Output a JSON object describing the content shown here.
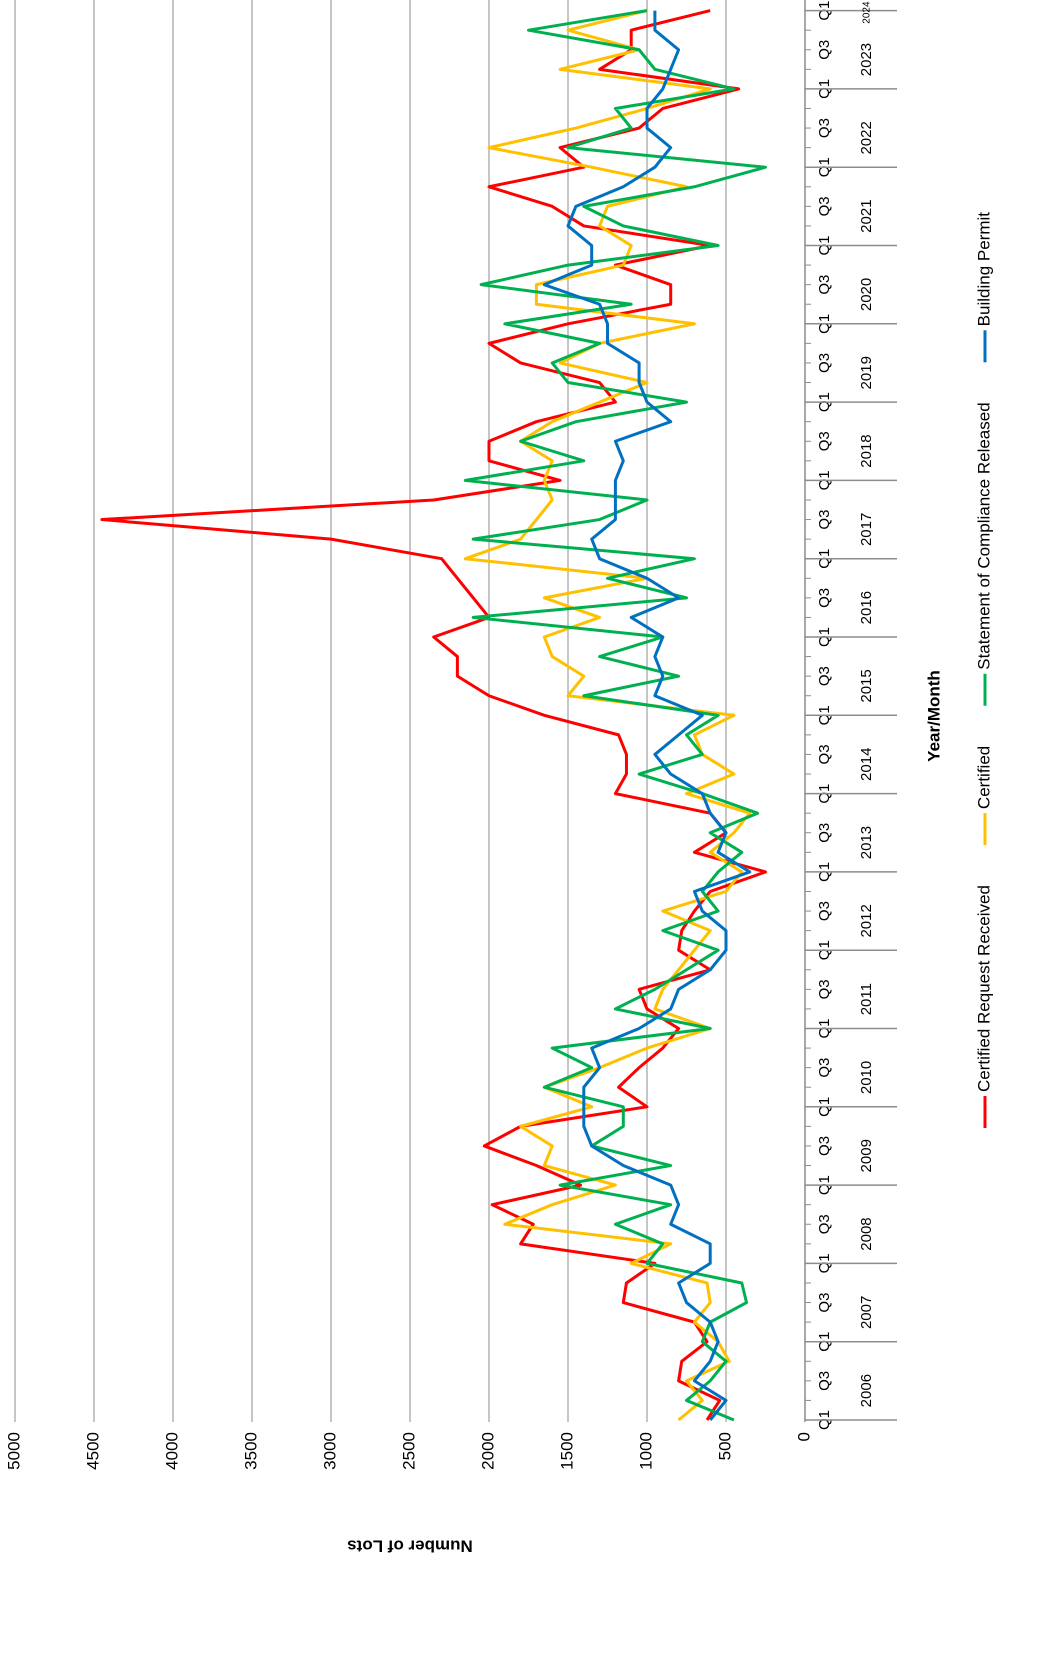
{
  "chart_data": {
    "type": "line",
    "x_axis_title": "Year/Month",
    "y_axis_title": "Number of Lots",
    "categories": [
      "Q1",
      null,
      "Q3",
      null,
      "Q1",
      null,
      "Q3",
      null,
      "Q1",
      null,
      "Q3",
      null,
      "Q1",
      null,
      "Q3",
      null,
      "Q1",
      null,
      "Q3",
      null,
      "Q1",
      null,
      "Q3",
      null,
      "Q1",
      null,
      "Q3",
      null,
      "Q1",
      null,
      "Q3",
      null,
      "Q1",
      null,
      "Q3",
      null,
      "Q1",
      null,
      "Q3",
      null,
      "Q1",
      null,
      "Q3",
      null,
      "Q1",
      null,
      "Q3",
      null,
      "Q1",
      null,
      "Q3",
      null,
      "Q1",
      null,
      "Q3",
      null,
      "Q1",
      null,
      "Q3",
      null,
      "Q1",
      null,
      "Q3",
      null,
      "Q1",
      null,
      "Q3",
      null,
      "Q1",
      null,
      "Q3",
      null,
      "Q1"
    ],
    "year_labels": [
      "2006",
      "2007",
      "2008",
      "2009",
      "2010",
      "2011",
      "2012",
      "2013",
      "2014",
      "2015",
      "2016",
      "2017",
      "2018",
      "2019",
      "2020",
      "2021",
      "2022",
      "2023",
      "2024"
    ],
    "series": [
      {
        "name": "Certified Request Received",
        "color": "#ff0000",
        "values": [
          620,
          540,
          800,
          780,
          620,
          700,
          1150,
          1130,
          950,
          1800,
          1720,
          1980,
          1420,
          1700,
          2030,
          1800,
          1000,
          1180,
          1050,
          900,
          800,
          1000,
          1050,
          600,
          800,
          780,
          700,
          600,
          250,
          700,
          500,
          600,
          1200,
          1130,
          1130,
          1180,
          1650,
          2000,
          2200,
          2200,
          2350,
          2000,
          2100,
          2200,
          2300,
          3000,
          4450,
          2350,
          1550,
          2000,
          2000,
          1700,
          1200,
          1300,
          1800,
          2000,
          1500,
          850,
          850,
          1200,
          600,
          1400,
          1600,
          2000,
          1400,
          1550,
          1050,
          900,
          420,
          1300,
          1100,
          1100,
          600
        ]
      },
      {
        "name": "Certified",
        "color": "#ffc000",
        "values": [
          800,
          650,
          750,
          480,
          550,
          700,
          600,
          620,
          1100,
          850,
          1900,
          1600,
          1200,
          1650,
          1600,
          1800,
          1350,
          1650,
          1300,
          1000,
          600,
          950,
          900,
          800,
          700,
          600,
          900,
          500,
          400,
          600,
          450,
          350,
          750,
          450,
          650,
          700,
          450,
          1500,
          1400,
          1600,
          1650,
          1300,
          1650,
          1000,
          2150,
          1800,
          1700,
          1600,
          1650,
          1600,
          1800,
          1600,
          1300,
          1000,
          1550,
          1300,
          700,
          1700,
          1700,
          1150,
          1100,
          1300,
          1250,
          750,
          1350,
          2000,
          1450,
          1000,
          600,
          1550,
          1050,
          1500,
          1000
        ]
      },
      {
        "name": "Statement of Compliance Released",
        "color": "#00b050",
        "values": [
          450,
          750,
          600,
          500,
          650,
          600,
          370,
          400,
          1000,
          900,
          1200,
          850,
          1550,
          850,
          1350,
          1150,
          1150,
          1650,
          1350,
          1600,
          600,
          1200,
          950,
          750,
          550,
          900,
          550,
          650,
          550,
          400,
          600,
          300,
          650,
          1050,
          650,
          750,
          550,
          1400,
          800,
          1300,
          900,
          2100,
          750,
          1250,
          700,
          2100,
          1300,
          1000,
          2150,
          1400,
          1800,
          1450,
          750,
          1500,
          1600,
          1300,
          1900,
          1100,
          2050,
          1500,
          550,
          1150,
          1400,
          700,
          250,
          1500,
          1100,
          1200,
          450,
          950,
          1050,
          1750,
          1000
        ]
      },
      {
        "name": "Building Permit",
        "color": "#0070c0",
        "values": [
          600,
          500,
          700,
          600,
          550,
          600,
          750,
          800,
          600,
          600,
          850,
          800,
          850,
          1150,
          1350,
          1400,
          1400,
          1400,
          1300,
          1350,
          1050,
          850,
          800,
          600,
          500,
          500,
          650,
          700,
          350,
          550,
          500,
          600,
          650,
          850,
          950,
          800,
          650,
          950,
          900,
          950,
          900,
          1100,
          800,
          1000,
          1300,
          1350,
          1200,
          1200,
          1200,
          1150,
          1200,
          850,
          1000,
          1050,
          1050,
          1250,
          1250,
          1300,
          1650,
          1350,
          1350,
          1500,
          1450,
          1150,
          950,
          850,
          1000,
          1000,
          900,
          850,
          800,
          950,
          950
        ]
      }
    ],
    "ylim": [
      0,
      5000
    ],
    "yticks": [
      0,
      500,
      1000,
      1500,
      2000,
      2500,
      3000,
      3500,
      4000,
      4500,
      5000
    ],
    "grid": true,
    "legend": "bottom"
  }
}
